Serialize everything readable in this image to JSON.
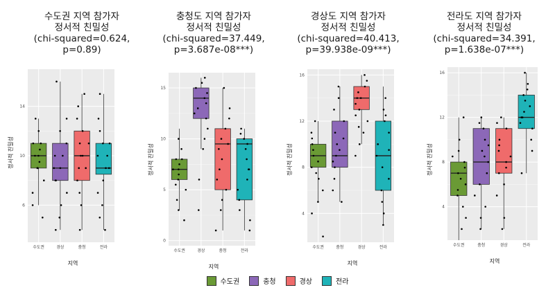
{
  "chart_data": [
    {
      "type": "box",
      "title": "수도권 지역 참가자\n정서적 친밀성\n(chi-squared=0.624,\np=0.89)",
      "xlabel": "지역",
      "ylabel": "정서적 친밀성",
      "ylim": [
        3,
        17
      ],
      "yticks": [
        6,
        10,
        14
      ],
      "categories": [
        "수도권",
        "경상",
        "충청",
        "전라"
      ],
      "boxes": [
        {
          "q1": 9,
          "median": 10,
          "q3": 11,
          "wmin": 6,
          "wmax": 13,
          "color": "#6a9a35"
        },
        {
          "q1": 8,
          "median": 9,
          "q3": 11,
          "wmin": 4,
          "wmax": 16,
          "color": "#8c68b8"
        },
        {
          "q1": 8,
          "median": 10,
          "q3": 12,
          "wmin": 4,
          "wmax": 15,
          "color": "#ef6b6b"
        },
        {
          "q1": 8.5,
          "median": 9,
          "q3": 11,
          "wmin": 4,
          "wmax": 15,
          "color": "#1fb3b8"
        }
      ],
      "points": [
        [
          1,
          10
        ],
        [
          1,
          9.5
        ],
        [
          1,
          11
        ],
        [
          1,
          10
        ],
        [
          1,
          9
        ],
        [
          1,
          12
        ],
        [
          1,
          6
        ],
        [
          1,
          8
        ],
        [
          1,
          10.5
        ],
        [
          1,
          9
        ],
        [
          1,
          13
        ],
        [
          1,
          5
        ],
        [
          1,
          11
        ],
        [
          1,
          7
        ],
        [
          2,
          9
        ],
        [
          2,
          16
        ],
        [
          2,
          10
        ],
        [
          2,
          8
        ],
        [
          2,
          6
        ],
        [
          2,
          12
        ],
        [
          2,
          4
        ],
        [
          2,
          9
        ],
        [
          2,
          11
        ],
        [
          2,
          7
        ],
        [
          2,
          10
        ],
        [
          2,
          5
        ],
        [
          2,
          13
        ],
        [
          2,
          8
        ],
        [
          3,
          10
        ],
        [
          3,
          12
        ],
        [
          3,
          15
        ],
        [
          3,
          9
        ],
        [
          3,
          8
        ],
        [
          3,
          11
        ],
        [
          3,
          6
        ],
        [
          3,
          14
        ],
        [
          3,
          10
        ],
        [
          3,
          7
        ],
        [
          3,
          13
        ],
        [
          3,
          9
        ],
        [
          3,
          4
        ],
        [
          3,
          11
        ],
        [
          4,
          10
        ],
        [
          4,
          11
        ],
        [
          4,
          15
        ],
        [
          4,
          9
        ],
        [
          4,
          8
        ],
        [
          4,
          12
        ],
        [
          4,
          4
        ],
        [
          4,
          6
        ],
        [
          4,
          10
        ],
        [
          4,
          9
        ],
        [
          4,
          13
        ],
        [
          4,
          5
        ],
        [
          4,
          11
        ],
        [
          4,
          7
        ]
      ]
    },
    {
      "type": "box",
      "title": "충청도 지역 참가자\n정서적 친밀성\n(chi-squared=37.449,\np=3.687e-08***)",
      "xlabel": "지역",
      "ylabel": "정서적 친밀성",
      "ylim": [
        -0.5,
        16.5
      ],
      "yticks": [
        0,
        5,
        10,
        15
      ],
      "categories": [
        "수도권",
        "경상",
        "충청",
        "전라"
      ],
      "boxes": [
        {
          "q1": 6,
          "median": 7,
          "q3": 8,
          "wmin": 3,
          "wmax": 11,
          "color": "#6a9a35"
        },
        {
          "q1": 12,
          "median": 14,
          "q3": 15,
          "wmin": 9,
          "wmax": 16,
          "color": "#8c68b8"
        },
        {
          "q1": 5,
          "median": 9.5,
          "q3": 11,
          "wmin": 1,
          "wmax": 15,
          "color": "#ef6b6b"
        },
        {
          "q1": 4,
          "median": 9.5,
          "q3": 10,
          "wmin": 1,
          "wmax": 11,
          "color": "#1fb3b8"
        }
      ],
      "points": [
        [
          1,
          7
        ],
        [
          1,
          6
        ],
        [
          1,
          8
        ],
        [
          1,
          9
        ],
        [
          1,
          5
        ],
        [
          1,
          4
        ],
        [
          1,
          3
        ],
        [
          1,
          7.5
        ],
        [
          1,
          10
        ],
        [
          1,
          2
        ],
        [
          1,
          6.5
        ],
        [
          1,
          7
        ],
        [
          1,
          8
        ],
        [
          1,
          5.5
        ],
        [
          2,
          14
        ],
        [
          2,
          15
        ],
        [
          2,
          13
        ],
        [
          2,
          16
        ],
        [
          2,
          12
        ],
        [
          2,
          11
        ],
        [
          2,
          14.5
        ],
        [
          2,
          13.5
        ],
        [
          2,
          10
        ],
        [
          2,
          9
        ],
        [
          2,
          15.5
        ],
        [
          2,
          12.5
        ],
        [
          2,
          3
        ],
        [
          2,
          6
        ],
        [
          3,
          9
        ],
        [
          3,
          10
        ],
        [
          3,
          11
        ],
        [
          3,
          5
        ],
        [
          3,
          7
        ],
        [
          3,
          12
        ],
        [
          3,
          1
        ],
        [
          3,
          3
        ],
        [
          3,
          15
        ],
        [
          3,
          8
        ],
        [
          3,
          6
        ],
        [
          3,
          13
        ],
        [
          3,
          4
        ],
        [
          3,
          9.5
        ],
        [
          4,
          9
        ],
        [
          4,
          10
        ],
        [
          4,
          4
        ],
        [
          4,
          7
        ],
        [
          4,
          2
        ],
        [
          4,
          11
        ],
        [
          4,
          5
        ],
        [
          4,
          3
        ],
        [
          4,
          9.5
        ],
        [
          4,
          6
        ],
        [
          4,
          8
        ],
        [
          4,
          1
        ],
        [
          4,
          10.5
        ],
        [
          4,
          7
        ]
      ]
    },
    {
      "type": "box",
      "title": "경상도 지역 참가자\n정서적 친밀성\n(chi-squared=40.413,\np=39.938e-09***)",
      "xlabel": "지역",
      "ylabel": "정서적 친밀성",
      "ylim": [
        1.5,
        16.5
      ],
      "yticks": [
        4,
        8,
        12,
        16
      ],
      "categories": [
        "수도권",
        "충청",
        "경상",
        "전라"
      ],
      "boxes": [
        {
          "q1": 8,
          "median": 9,
          "q3": 10,
          "wmin": 5,
          "wmax": 12,
          "color": "#6a9a35"
        },
        {
          "q1": 8,
          "median": 9,
          "q3": 12,
          "wmin": 5,
          "wmax": 15,
          "color": "#8c68b8"
        },
        {
          "q1": 13,
          "median": 14,
          "q3": 15,
          "wmin": 10,
          "wmax": 16,
          "color": "#ef6b6b"
        },
        {
          "q1": 6,
          "median": 9,
          "q3": 12,
          "wmin": 3,
          "wmax": 15,
          "color": "#1fb3b8"
        }
      ],
      "points": [
        [
          1,
          9
        ],
        [
          1,
          8
        ],
        [
          1,
          10
        ],
        [
          1,
          11
        ],
        [
          1,
          7
        ],
        [
          1,
          6
        ],
        [
          1,
          2
        ],
        [
          1,
          9.5
        ],
        [
          1,
          8.5
        ],
        [
          1,
          4
        ],
        [
          1,
          12
        ],
        [
          1,
          5
        ],
        [
          1,
          10.5
        ],
        [
          1,
          7.5
        ],
        [
          2,
          9
        ],
        [
          2,
          10
        ],
        [
          2,
          12
        ],
        [
          2,
          8
        ],
        [
          2,
          11
        ],
        [
          2,
          6
        ],
        [
          2,
          5
        ],
        [
          2,
          13
        ],
        [
          2,
          15
        ],
        [
          2,
          7
        ],
        [
          2,
          9.5
        ],
        [
          2,
          14
        ],
        [
          2,
          8.5
        ],
        [
          2,
          10.5
        ],
        [
          3,
          14
        ],
        [
          3,
          15
        ],
        [
          3,
          13
        ],
        [
          3,
          12
        ],
        [
          3,
          16
        ],
        [
          3,
          11
        ],
        [
          3,
          14.5
        ],
        [
          3,
          10
        ],
        [
          3,
          13.5
        ],
        [
          3,
          15.5
        ],
        [
          3,
          12.5
        ],
        [
          3,
          9
        ],
        [
          3,
          14
        ],
        [
          3,
          11.5
        ],
        [
          4,
          9
        ],
        [
          4,
          12
        ],
        [
          4,
          8
        ],
        [
          4,
          6
        ],
        [
          4,
          4
        ],
        [
          4,
          11
        ],
        [
          4,
          13
        ],
        [
          4,
          5
        ],
        [
          4,
          10
        ],
        [
          4,
          7
        ],
        [
          4,
          14
        ],
        [
          4,
          3
        ],
        [
          4,
          9.5
        ],
        [
          4,
          12.5
        ]
      ]
    },
    {
      "type": "box",
      "title": "전라도 지역 참가자\n정서적 친밀성\n(chi-squared=34.391,\np=1.638e-07***)",
      "xlabel": "지역",
      "ylabel": "정서적 친밀성",
      "ylim": [
        1,
        16.5
      ],
      "yticks": [
        4,
        8,
        12,
        16
      ],
      "categories": [
        "수도권",
        "충청",
        "경상",
        "전라"
      ],
      "boxes": [
        {
          "q1": 5,
          "median": 7,
          "q3": 8,
          "wmin": 1,
          "wmax": 12,
          "color": "#6a9a35"
        },
        {
          "q1": 6,
          "median": 8,
          "q3": 11,
          "wmin": 2,
          "wmax": 12,
          "color": "#8c68b8"
        },
        {
          "q1": 7,
          "median": 8,
          "q3": 11,
          "wmin": 2,
          "wmax": 12,
          "color": "#ef6b6b"
        },
        {
          "q1": 11,
          "median": 12,
          "q3": 14,
          "wmin": 7,
          "wmax": 16,
          "color": "#1fb3b8"
        }
      ],
      "points": [
        [
          1,
          7
        ],
        [
          1,
          6
        ],
        [
          1,
          8
        ],
        [
          1,
          5
        ],
        [
          1,
          9
        ],
        [
          1,
          2
        ],
        [
          1,
          4
        ],
        [
          1,
          7.5
        ],
        [
          1,
          10
        ],
        [
          1,
          3
        ],
        [
          1,
          6.5
        ],
        [
          1,
          12
        ],
        [
          1,
          5.5
        ],
        [
          1,
          8.5
        ],
        [
          2,
          8
        ],
        [
          2,
          9
        ],
        [
          2,
          11
        ],
        [
          2,
          6
        ],
        [
          2,
          10
        ],
        [
          2,
          4
        ],
        [
          2,
          12
        ],
        [
          2,
          2
        ],
        [
          2,
          7
        ],
        [
          2,
          8.5
        ],
        [
          2,
          5
        ],
        [
          2,
          11.5
        ],
        [
          2,
          3
        ],
        [
          2,
          9.5
        ],
        [
          3,
          8
        ],
        [
          3,
          9
        ],
        [
          3,
          11
        ],
        [
          3,
          7
        ],
        [
          3,
          10
        ],
        [
          3,
          3
        ],
        [
          3,
          12
        ],
        [
          3,
          5
        ],
        [
          3,
          8.5
        ],
        [
          3,
          6
        ],
        [
          3,
          11.5
        ],
        [
          3,
          2
        ],
        [
          3,
          9.5
        ],
        [
          3,
          7.5
        ],
        [
          4,
          12
        ],
        [
          4,
          13
        ],
        [
          4,
          14
        ],
        [
          4,
          11
        ],
        [
          4,
          15
        ],
        [
          4,
          16
        ],
        [
          4,
          10
        ],
        [
          4,
          7
        ],
        [
          4,
          12.5
        ],
        [
          4,
          13.5
        ],
        [
          4,
          9
        ],
        [
          4,
          14.5
        ],
        [
          4,
          11.5
        ],
        [
          4,
          12
        ]
      ]
    }
  ],
  "legend": [
    {
      "label": "수도권",
      "color": "#6a9a35"
    },
    {
      "label": "충청",
      "color": "#8c68b8"
    },
    {
      "label": "경상",
      "color": "#ef6b6b"
    },
    {
      "label": "전라",
      "color": "#1fb3b8"
    }
  ]
}
